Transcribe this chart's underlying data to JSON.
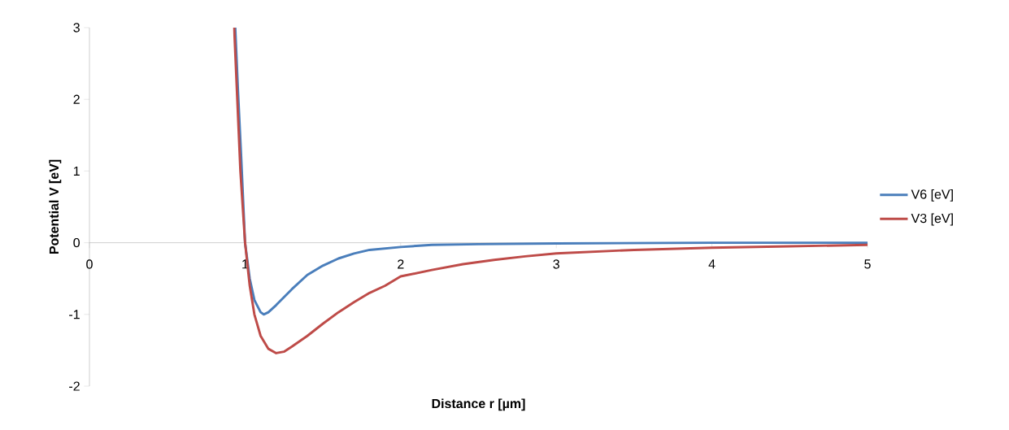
{
  "chart_data": {
    "type": "line",
    "xlabel": "Distance r [µm]",
    "ylabel": "Potential V [eV]",
    "xlim": [
      0,
      5
    ],
    "ylim": [
      -2,
      3
    ],
    "xticks": [
      0,
      1,
      2,
      3,
      4,
      5
    ],
    "yticks": [
      -2,
      -1,
      0,
      1,
      2,
      3
    ],
    "legend": "right",
    "series": [
      {
        "name": "V6 [eV]",
        "color": "#4a7ebb",
        "x": [
          0.937,
          0.955,
          0.975,
          1.0,
          1.03,
          1.06,
          1.1,
          1.12,
          1.15,
          1.2,
          1.3,
          1.4,
          1.5,
          1.6,
          1.7,
          1.8,
          2.0,
          2.2,
          2.5,
          3.0,
          4.0,
          5.0
        ],
        "values": [
          3.0,
          2.1,
          1.2,
          0,
          -0.5,
          -0.8,
          -0.97,
          -1.0,
          -0.97,
          -0.87,
          -0.65,
          -0.45,
          -0.32,
          -0.22,
          -0.15,
          -0.1,
          -0.06,
          -0.03,
          -0.02,
          -0.01,
          0,
          0
        ]
      },
      {
        "name": "V3 [eV]",
        "color": "#be4b48",
        "x": [
          0.93,
          0.95,
          0.97,
          1.0,
          1.03,
          1.06,
          1.1,
          1.15,
          1.2,
          1.25,
          1.3,
          1.4,
          1.5,
          1.6,
          1.7,
          1.8,
          1.9,
          2.0,
          2.2,
          2.4,
          2.6,
          2.8,
          3.0,
          3.5,
          4.0,
          4.5,
          5.0
        ],
        "values": [
          3.0,
          2.0,
          1.0,
          0,
          -0.6,
          -1.0,
          -1.3,
          -1.48,
          -1.54,
          -1.52,
          -1.45,
          -1.3,
          -1.13,
          -0.97,
          -0.83,
          -0.7,
          -0.6,
          -0.47,
          -0.38,
          -0.3,
          -0.24,
          -0.19,
          -0.15,
          -0.1,
          -0.07,
          -0.05,
          -0.03
        ]
      }
    ]
  }
}
